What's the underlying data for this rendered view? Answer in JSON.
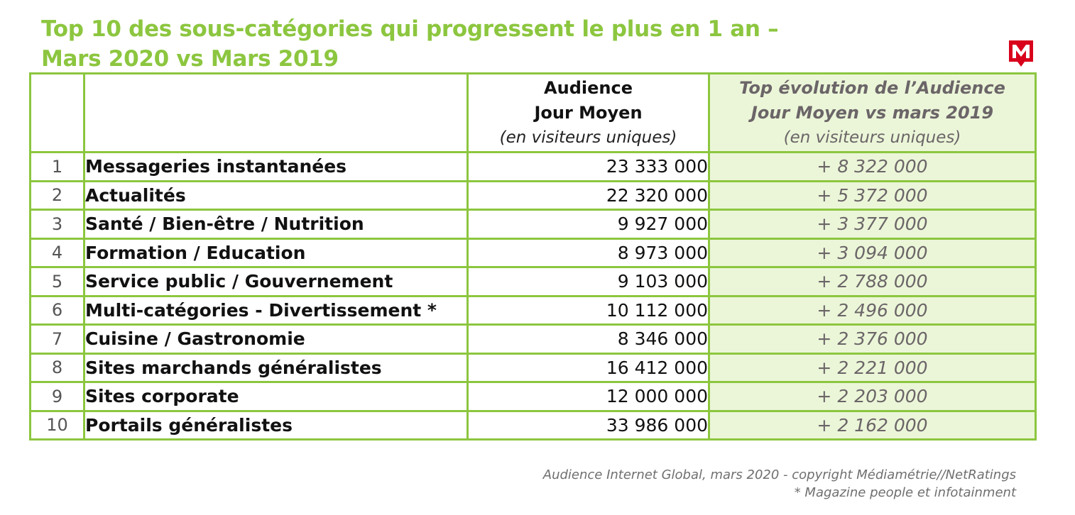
{
  "title": {
    "line1": "Top 10 des sous-catégories qui progressent le plus en 1 an –",
    "line2": "Mars 2020 vs Mars 2019"
  },
  "logo": {
    "icon": "mediametrie-m-logo",
    "color": "#d9001b"
  },
  "colors": {
    "accent": "#8cc63f",
    "highlight_bg": "#ebf6d8",
    "muted_text": "#6b6568"
  },
  "table": {
    "headers": {
      "audience": {
        "line1": "Audience",
        "line2": "Jour Moyen",
        "sub": "(en visiteurs uniques)"
      },
      "evolution": {
        "line1": "Top évolution de l’Audience",
        "line2": "Jour Moyen vs mars 2019",
        "sub": "(en visiteurs uniques)"
      }
    },
    "rows": [
      {
        "rank": "1",
        "name": "Messageries instantanées",
        "audience": "23 333 000",
        "evolution": "+ 8 322 000"
      },
      {
        "rank": "2",
        "name": "Actualités",
        "audience": "22 320 000",
        "evolution": "+ 5 372 000"
      },
      {
        "rank": "3",
        "name": "Santé / Bien-être / Nutrition",
        "audience": "9 927 000",
        "evolution": "+ 3 377 000"
      },
      {
        "rank": "4",
        "name": "Formation / Education",
        "audience": "8 973 000",
        "evolution": "+ 3 094 000"
      },
      {
        "rank": "5",
        "name": "Service public / Gouvernement",
        "audience": "9 103 000",
        "evolution": "+ 2 788 000"
      },
      {
        "rank": "6",
        "name": "Multi-catégories - Divertissement *",
        "audience": "10 112 000",
        "evolution": "+ 2 496 000"
      },
      {
        "rank": "7",
        "name": "Cuisine / Gastronomie",
        "audience": "8 346 000",
        "evolution": "+ 2 376 000"
      },
      {
        "rank": "8",
        "name": "Sites marchands généralistes",
        "audience": "16 412 000",
        "evolution": "+ 2 221 000"
      },
      {
        "rank": "9",
        "name": "Sites corporate",
        "audience": "12 000 000",
        "evolution": "+ 2 203 000"
      },
      {
        "rank": "10",
        "name": "Portails généralistes",
        "audience": "33 986 000",
        "evolution": "+ 2 162 000"
      }
    ]
  },
  "footer": {
    "source": "Audience Internet Global, mars 2020  - copyright Médiamétrie//NetRatings",
    "note": "* Magazine people et infotainment"
  }
}
